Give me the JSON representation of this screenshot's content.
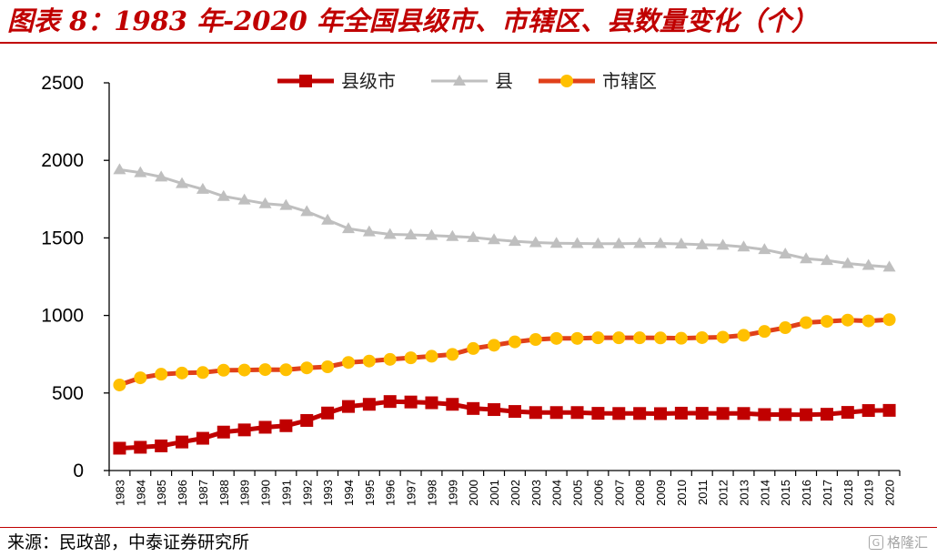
{
  "title": "图表 8：1983 年-2020 年全国县级市、市辖区、县数量变化（个）",
  "source": "来源：民政部，中泰证券研究所",
  "watermark": "格隆汇",
  "colors": {
    "brand": "#c00000",
    "county_city": "#c00000",
    "county": "#bfbfbf",
    "district_line": "#e0401a",
    "district_marker": "#ffc000"
  },
  "chart_data": {
    "type": "line",
    "categories": [
      "1983",
      "1984",
      "1985",
      "1986",
      "1987",
      "1988",
      "1989",
      "1990",
      "1991",
      "1992",
      "1993",
      "1994",
      "1995",
      "1996",
      "1997",
      "1998",
      "1999",
      "2000",
      "2001",
      "2002",
      "2003",
      "2004",
      "2005",
      "2006",
      "2007",
      "2008",
      "2009",
      "2010",
      "2011",
      "2012",
      "2013",
      "2014",
      "2015",
      "2016",
      "2017",
      "2018",
      "2019",
      "2020"
    ],
    "ylim": [
      0,
      2500
    ],
    "yticks": [
      0,
      500,
      1000,
      1500,
      2000,
      2500
    ],
    "grid": false,
    "legend_position": "top-center",
    "series": [
      {
        "name": "县级市",
        "marker": "square",
        "color": "#c00000",
        "values": [
          144,
          150,
          159,
          184,
          208,
          248,
          262,
          279,
          289,
          323,
          371,
          413,
          427,
          445,
          442,
          437,
          427,
          400,
          393,
          381,
          374,
          374,
          374,
          369,
          368,
          368,
          367,
          370,
          369,
          368,
          368,
          361,
          361,
          360,
          363,
          375,
          387,
          388
        ]
      },
      {
        "name": "县",
        "marker": "triangle",
        "color": "#bfbfbf",
        "values": [
          1940,
          1921,
          1893,
          1851,
          1814,
          1768,
          1745,
          1721,
          1710,
          1670,
          1615,
          1560,
          1540,
          1523,
          1520,
          1516,
          1510,
          1503,
          1489,
          1478,
          1470,
          1466,
          1464,
          1463,
          1463,
          1464,
          1464,
          1461,
          1456,
          1453,
          1442,
          1425,
          1397,
          1366,
          1355,
          1335,
          1323,
          1312
        ]
      },
      {
        "name": "市辖区",
        "marker": "circle",
        "color": "#e0401a",
        "marker_color": "#ffc000",
        "values": [
          552,
          598,
          621,
          629,
          632,
          647,
          648,
          651,
          650,
          662,
          669,
          697,
          706,
          717,
          727,
          737,
          749,
          787,
          808,
          830,
          845,
          852,
          852,
          856,
          856,
          856,
          855,
          853,
          857,
          860,
          872,
          897,
          921,
          954,
          962,
          970,
          965,
          973
        ]
      }
    ]
  }
}
